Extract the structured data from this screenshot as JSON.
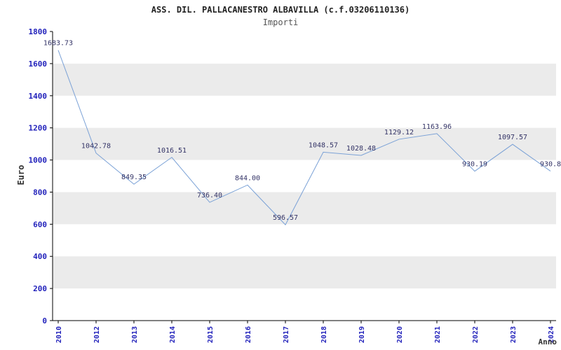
{
  "chart_data": {
    "type": "line",
    "title": "ASS. DIL. PALLACANESTRO ALBAVILLA (c.f.03206110136)",
    "subtitle": "Importi",
    "ylabel": "Euro",
    "xlabel": "Anno",
    "categories": [
      "2010",
      "2012",
      "2013",
      "2014",
      "2015",
      "2016",
      "2017",
      "2018",
      "2019",
      "2020",
      "2021",
      "2022",
      "2023",
      "2024"
    ],
    "values": [
      1683.73,
      1042.78,
      849.35,
      1016.51,
      736.4,
      844.0,
      596.57,
      1048.57,
      1028.48,
      1129.12,
      1163.96,
      930.19,
      1097.57,
      930.8
    ],
    "value_labels": [
      "1683.73",
      "1042.78",
      "849.35",
      "1016.51",
      "736.40",
      "844.00",
      "596.57",
      "1048.57",
      "1028.48",
      "1129.12",
      "1163.96",
      "930.19",
      "1097.57",
      "930.8"
    ],
    "ylim": [
      0,
      1800
    ],
    "yticks": [
      0,
      200,
      400,
      600,
      800,
      1000,
      1200,
      1400,
      1600,
      1800
    ],
    "grid": false,
    "legend": "none",
    "colors": {
      "band": "#ebebeb",
      "plot_background": "#ffffff",
      "line": "#7aa1d6",
      "axis": "#000000",
      "tick_label": "#2222bb",
      "value_label": "#333366"
    }
  }
}
